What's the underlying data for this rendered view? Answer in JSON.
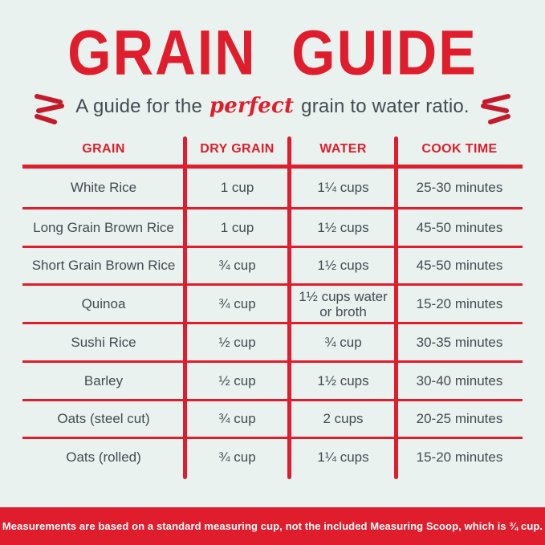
{
  "title": "GRAIN GUIDE",
  "subtitle": {
    "before": "A guide for the",
    "highlight": "perfect",
    "after": "grain to water ratio."
  },
  "icons": {
    "left": "spark-burst-left-icon",
    "right": "spark-burst-right-icon"
  },
  "colors": {
    "accent_red": "#e01d2c",
    "background_mint": "#e9f2ee",
    "text_dark": "#414c53",
    "footer_text": "#ffffff"
  },
  "table": {
    "columns": [
      "GRAIN",
      "DRY GRAIN",
      "WATER",
      "COOK TIME"
    ],
    "rows": [
      [
        "White Rice",
        "1 cup",
        "1¼ cups",
        "25-30 minutes"
      ],
      [
        "Long Grain Brown Rice",
        "1 cup",
        "1½ cups",
        "45-50 minutes"
      ],
      [
        "Short Grain Brown Rice",
        "¾ cup",
        "1½ cups",
        "45-50 minutes"
      ],
      [
        "Quinoa",
        "¾ cup",
        "1½ cups water or broth",
        "15-20 minutes"
      ],
      [
        "Sushi Rice",
        "½ cup",
        "¾ cup",
        "30-35 minutes"
      ],
      [
        "Barley",
        "½ cup",
        "1½ cups",
        "30-40 minutes"
      ],
      [
        "Oats (steel cut)",
        "¾ cup",
        "2 cups",
        "20-25 minutes"
      ],
      [
        "Oats (rolled)",
        "¾ cup",
        "1¼ cups",
        "15-20 minutes"
      ]
    ]
  },
  "footer": {
    "note": "Measurements are based on a standard measuring cup, not the included Measuring Scoop, which is ¾ cup."
  },
  "chart_data": {
    "type": "table",
    "title": "GRAIN GUIDE",
    "subtitle": "A guide for the perfect grain to water ratio.",
    "columns": [
      "GRAIN",
      "DRY GRAIN",
      "WATER",
      "COOK TIME"
    ],
    "rows": [
      [
        "White Rice",
        "1 cup",
        "1¼ cups",
        "25-30 minutes"
      ],
      [
        "Long Grain Brown Rice",
        "1 cup",
        "1½ cups",
        "45-50 minutes"
      ],
      [
        "Short Grain Brown Rice",
        "¾ cup",
        "1½ cups",
        "45-50 minutes"
      ],
      [
        "Quinoa",
        "¾ cup",
        "1½ cups water or broth",
        "15-20 minutes"
      ],
      [
        "Sushi Rice",
        "½ cup",
        "¾ cup",
        "30-35 minutes"
      ],
      [
        "Barley",
        "½ cup",
        "1½ cups",
        "30-40 minutes"
      ],
      [
        "Oats (steel cut)",
        "¾ cup",
        "2 cups",
        "20-25 minutes"
      ],
      [
        "Oats (rolled)",
        "¾ cup",
        "1¼ cups",
        "15-20 minutes"
      ]
    ],
    "footnote": "Measurements are based on a standard measuring cup, not the included Measuring Scoop, which is ¾ cup."
  }
}
